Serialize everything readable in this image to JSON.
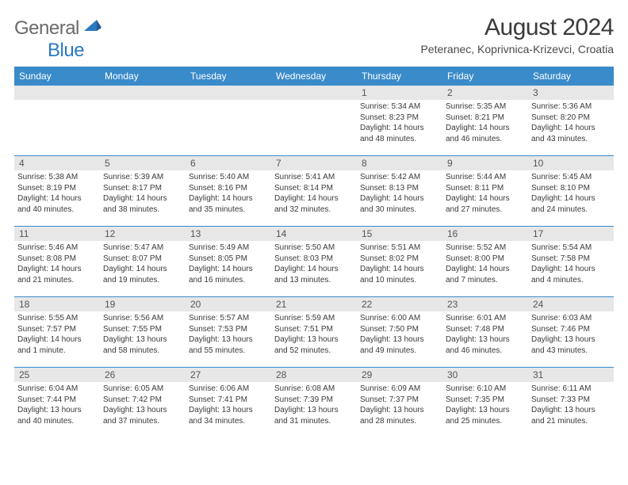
{
  "logo": {
    "word1": "General",
    "word2": "Blue"
  },
  "title": "August 2024",
  "location": "Peteranec, Koprivnica-Krizevci, Croatia",
  "colors": {
    "header_bar": "#3a8bc9",
    "daynum_bg": "#e7e7e7",
    "week_divider": "#3a8bc9",
    "logo_gray": "#6a6a6a",
    "logo_blue": "#2a79c0",
    "text": "#3a3a3a"
  },
  "dow": [
    "Sunday",
    "Monday",
    "Tuesday",
    "Wednesday",
    "Thursday",
    "Friday",
    "Saturday"
  ],
  "weeks": [
    [
      {
        "n": "",
        "sr": "",
        "ss": "",
        "dl1": "",
        "dl2": ""
      },
      {
        "n": "",
        "sr": "",
        "ss": "",
        "dl1": "",
        "dl2": ""
      },
      {
        "n": "",
        "sr": "",
        "ss": "",
        "dl1": "",
        "dl2": ""
      },
      {
        "n": "",
        "sr": "",
        "ss": "",
        "dl1": "",
        "dl2": ""
      },
      {
        "n": "1",
        "sr": "Sunrise: 5:34 AM",
        "ss": "Sunset: 8:23 PM",
        "dl1": "Daylight: 14 hours",
        "dl2": "and 48 minutes."
      },
      {
        "n": "2",
        "sr": "Sunrise: 5:35 AM",
        "ss": "Sunset: 8:21 PM",
        "dl1": "Daylight: 14 hours",
        "dl2": "and 46 minutes."
      },
      {
        "n": "3",
        "sr": "Sunrise: 5:36 AM",
        "ss": "Sunset: 8:20 PM",
        "dl1": "Daylight: 14 hours",
        "dl2": "and 43 minutes."
      }
    ],
    [
      {
        "n": "4",
        "sr": "Sunrise: 5:38 AM",
        "ss": "Sunset: 8:19 PM",
        "dl1": "Daylight: 14 hours",
        "dl2": "and 40 minutes."
      },
      {
        "n": "5",
        "sr": "Sunrise: 5:39 AM",
        "ss": "Sunset: 8:17 PM",
        "dl1": "Daylight: 14 hours",
        "dl2": "and 38 minutes."
      },
      {
        "n": "6",
        "sr": "Sunrise: 5:40 AM",
        "ss": "Sunset: 8:16 PM",
        "dl1": "Daylight: 14 hours",
        "dl2": "and 35 minutes."
      },
      {
        "n": "7",
        "sr": "Sunrise: 5:41 AM",
        "ss": "Sunset: 8:14 PM",
        "dl1": "Daylight: 14 hours",
        "dl2": "and 32 minutes."
      },
      {
        "n": "8",
        "sr": "Sunrise: 5:42 AM",
        "ss": "Sunset: 8:13 PM",
        "dl1": "Daylight: 14 hours",
        "dl2": "and 30 minutes."
      },
      {
        "n": "9",
        "sr": "Sunrise: 5:44 AM",
        "ss": "Sunset: 8:11 PM",
        "dl1": "Daylight: 14 hours",
        "dl2": "and 27 minutes."
      },
      {
        "n": "10",
        "sr": "Sunrise: 5:45 AM",
        "ss": "Sunset: 8:10 PM",
        "dl1": "Daylight: 14 hours",
        "dl2": "and 24 minutes."
      }
    ],
    [
      {
        "n": "11",
        "sr": "Sunrise: 5:46 AM",
        "ss": "Sunset: 8:08 PM",
        "dl1": "Daylight: 14 hours",
        "dl2": "and 21 minutes."
      },
      {
        "n": "12",
        "sr": "Sunrise: 5:47 AM",
        "ss": "Sunset: 8:07 PM",
        "dl1": "Daylight: 14 hours",
        "dl2": "and 19 minutes."
      },
      {
        "n": "13",
        "sr": "Sunrise: 5:49 AM",
        "ss": "Sunset: 8:05 PM",
        "dl1": "Daylight: 14 hours",
        "dl2": "and 16 minutes."
      },
      {
        "n": "14",
        "sr": "Sunrise: 5:50 AM",
        "ss": "Sunset: 8:03 PM",
        "dl1": "Daylight: 14 hours",
        "dl2": "and 13 minutes."
      },
      {
        "n": "15",
        "sr": "Sunrise: 5:51 AM",
        "ss": "Sunset: 8:02 PM",
        "dl1": "Daylight: 14 hours",
        "dl2": "and 10 minutes."
      },
      {
        "n": "16",
        "sr": "Sunrise: 5:52 AM",
        "ss": "Sunset: 8:00 PM",
        "dl1": "Daylight: 14 hours",
        "dl2": "and 7 minutes."
      },
      {
        "n": "17",
        "sr": "Sunrise: 5:54 AM",
        "ss": "Sunset: 7:58 PM",
        "dl1": "Daylight: 14 hours",
        "dl2": "and 4 minutes."
      }
    ],
    [
      {
        "n": "18",
        "sr": "Sunrise: 5:55 AM",
        "ss": "Sunset: 7:57 PM",
        "dl1": "Daylight: 14 hours",
        "dl2": "and 1 minute."
      },
      {
        "n": "19",
        "sr": "Sunrise: 5:56 AM",
        "ss": "Sunset: 7:55 PM",
        "dl1": "Daylight: 13 hours",
        "dl2": "and 58 minutes."
      },
      {
        "n": "20",
        "sr": "Sunrise: 5:57 AM",
        "ss": "Sunset: 7:53 PM",
        "dl1": "Daylight: 13 hours",
        "dl2": "and 55 minutes."
      },
      {
        "n": "21",
        "sr": "Sunrise: 5:59 AM",
        "ss": "Sunset: 7:51 PM",
        "dl1": "Daylight: 13 hours",
        "dl2": "and 52 minutes."
      },
      {
        "n": "22",
        "sr": "Sunrise: 6:00 AM",
        "ss": "Sunset: 7:50 PM",
        "dl1": "Daylight: 13 hours",
        "dl2": "and 49 minutes."
      },
      {
        "n": "23",
        "sr": "Sunrise: 6:01 AM",
        "ss": "Sunset: 7:48 PM",
        "dl1": "Daylight: 13 hours",
        "dl2": "and 46 minutes."
      },
      {
        "n": "24",
        "sr": "Sunrise: 6:03 AM",
        "ss": "Sunset: 7:46 PM",
        "dl1": "Daylight: 13 hours",
        "dl2": "and 43 minutes."
      }
    ],
    [
      {
        "n": "25",
        "sr": "Sunrise: 6:04 AM",
        "ss": "Sunset: 7:44 PM",
        "dl1": "Daylight: 13 hours",
        "dl2": "and 40 minutes."
      },
      {
        "n": "26",
        "sr": "Sunrise: 6:05 AM",
        "ss": "Sunset: 7:42 PM",
        "dl1": "Daylight: 13 hours",
        "dl2": "and 37 minutes."
      },
      {
        "n": "27",
        "sr": "Sunrise: 6:06 AM",
        "ss": "Sunset: 7:41 PM",
        "dl1": "Daylight: 13 hours",
        "dl2": "and 34 minutes."
      },
      {
        "n": "28",
        "sr": "Sunrise: 6:08 AM",
        "ss": "Sunset: 7:39 PM",
        "dl1": "Daylight: 13 hours",
        "dl2": "and 31 minutes."
      },
      {
        "n": "29",
        "sr": "Sunrise: 6:09 AM",
        "ss": "Sunset: 7:37 PM",
        "dl1": "Daylight: 13 hours",
        "dl2": "and 28 minutes."
      },
      {
        "n": "30",
        "sr": "Sunrise: 6:10 AM",
        "ss": "Sunset: 7:35 PM",
        "dl1": "Daylight: 13 hours",
        "dl2": "and 25 minutes."
      },
      {
        "n": "31",
        "sr": "Sunrise: 6:11 AM",
        "ss": "Sunset: 7:33 PM",
        "dl1": "Daylight: 13 hours",
        "dl2": "and 21 minutes."
      }
    ]
  ]
}
